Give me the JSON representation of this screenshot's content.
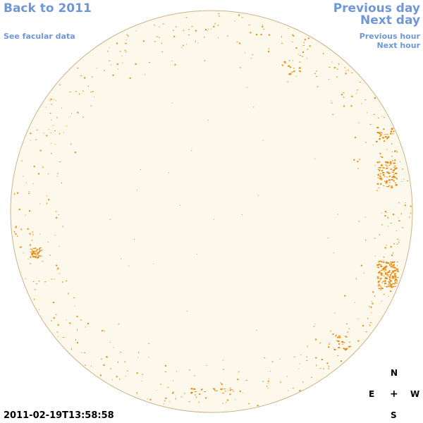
{
  "nav": {
    "back_label": "Back to 2011",
    "facular_label": "See facular data",
    "prev_day_label": "Previous day",
    "next_day_label": "Next day",
    "prev_hour_label": "Previous hour",
    "next_hour_label": "Next hour"
  },
  "timestamp": "2011-02-19T13:58:58",
  "compass": {
    "north": "N",
    "south": "S",
    "east": "E",
    "west": "W",
    "center": "+"
  },
  "colors": {
    "link": "#6f97d8",
    "disk_fill": "#fdf8ec",
    "disk_edge": "#c9b48a",
    "feature": "#e8890c"
  }
}
